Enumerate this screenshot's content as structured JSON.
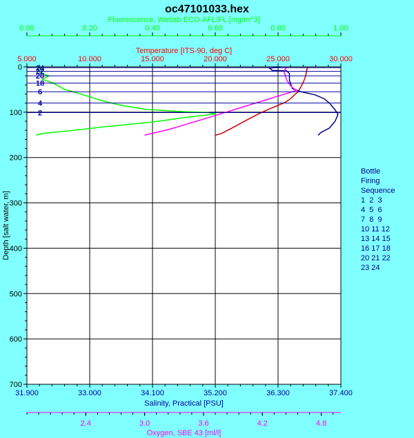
{
  "chart_data": {
    "type": "line",
    "title": "oc47101033.hex",
    "y_axis": {
      "label": "Depth [salt water, m]",
      "ticks": [
        "0",
        "100",
        "200",
        "300",
        "400",
        "500",
        "600",
        "700"
      ],
      "range": [
        0,
        700
      ],
      "inverted": true
    },
    "x_axes": [
      {
        "id": "fluorescence",
        "label": "Fluorescence, Wetlab ECO-AFL/FL [mg/m^3]",
        "position": "top",
        "color": "#00ff00",
        "range": [
          0,
          1
        ],
        "ticks": [
          "0.00",
          "0.20",
          "0.40",
          "0.60",
          "0.80",
          "1.00"
        ]
      },
      {
        "id": "temperature",
        "label": "Temperature [ITS-90, deg C]",
        "position": "top",
        "color": "#ff0000",
        "range": [
          5,
          30
        ],
        "ticks": [
          "5.000",
          "10.000",
          "15.000",
          "20.000",
          "25.000",
          "30.000"
        ]
      },
      {
        "id": "salinity",
        "label": "Salinity, Practical [PSU]",
        "position": "bottom",
        "color": "#0000a0",
        "range": [
          31.9,
          37.4
        ],
        "ticks": [
          "31.900",
          "33.000",
          "34.100",
          "35.200",
          "36.300",
          "37.400"
        ]
      },
      {
        "id": "oxygen",
        "label": "Oxygen, SBE 43 [ml/l]",
        "position": "bottom",
        "color": "#ff00ff",
        "range": [
          1.8,
          5.0
        ],
        "ticks": [
          "2.4",
          "3.0",
          "3.6",
          "4.2",
          "4.8"
        ]
      }
    ],
    "grid": true,
    "series": [
      {
        "axis": "temperature",
        "color": "#cc0000",
        "points": [
          [
            27.4,
            0
          ],
          [
            27.3,
            5
          ],
          [
            27.2,
            20
          ],
          [
            27.0,
            35
          ],
          [
            26.8,
            45
          ],
          [
            26.6,
            55
          ],
          [
            26.3,
            62
          ],
          [
            26.0,
            70
          ],
          [
            25.6,
            78
          ],
          [
            25.0,
            85
          ],
          [
            24.3,
            93
          ],
          [
            23.5,
            103
          ],
          [
            22.8,
            113
          ],
          [
            22.0,
            125
          ],
          [
            21.2,
            137
          ],
          [
            20.5,
            147
          ],
          [
            20.0,
            151
          ]
        ]
      },
      {
        "axis": "salinity",
        "color": "#000080",
        "points": [
          [
            36.35,
            0
          ],
          [
            36.15,
            3
          ],
          [
            36.2,
            8
          ],
          [
            36.45,
            9
          ],
          [
            36.5,
            15
          ],
          [
            36.5,
            30
          ],
          [
            36.55,
            48
          ],
          [
            36.7,
            55
          ],
          [
            36.95,
            62
          ],
          [
            37.1,
            70
          ],
          [
            37.2,
            80
          ],
          [
            37.3,
            95
          ],
          [
            37.35,
            105
          ],
          [
            37.3,
            120
          ],
          [
            37.2,
            135
          ],
          [
            37.05,
            145
          ],
          [
            37.0,
            151
          ]
        ]
      },
      {
        "axis": "oxygen",
        "color": "#ff00ff",
        "points": [
          [
            4.45,
            0
          ],
          [
            4.42,
            10
          ],
          [
            4.45,
            30
          ],
          [
            4.5,
            45
          ],
          [
            4.55,
            52
          ],
          [
            4.4,
            62
          ],
          [
            4.25,
            72
          ],
          [
            4.1,
            82
          ],
          [
            3.95,
            92
          ],
          [
            3.8,
            102
          ],
          [
            3.65,
            112
          ],
          [
            3.45,
            125
          ],
          [
            3.25,
            138
          ],
          [
            3.05,
            148
          ],
          [
            3.0,
            151
          ]
        ]
      },
      {
        "axis": "fluorescence",
        "color": "#00ff00",
        "points": [
          [
            0.03,
            0
          ],
          [
            0.05,
            6
          ],
          [
            0.04,
            12
          ],
          [
            0.07,
            20
          ],
          [
            0.05,
            28
          ],
          [
            0.08,
            35
          ],
          [
            0.1,
            42
          ],
          [
            0.12,
            50
          ],
          [
            0.16,
            58
          ],
          [
            0.2,
            66
          ],
          [
            0.24,
            75
          ],
          [
            0.3,
            85
          ],
          [
            0.38,
            94
          ],
          [
            0.47,
            98
          ],
          [
            0.58,
            101
          ],
          [
            0.6,
            104
          ],
          [
            0.5,
            112
          ],
          [
            0.4,
            122
          ],
          [
            0.25,
            132
          ],
          [
            0.15,
            140
          ],
          [
            0.05,
            147
          ],
          [
            0.03,
            151
          ]
        ]
      }
    ],
    "bottles": [
      {
        "label": "24",
        "depth": 2
      },
      {
        "label": "22",
        "depth": 10
      },
      {
        "label": "20",
        "depth": 20
      },
      {
        "label": "18",
        "depth": 36
      },
      {
        "label": "6",
        "depth": 55
      },
      {
        "label": "4",
        "depth": 80
      },
      {
        "label": "2",
        "depth": 101
      }
    ],
    "legend": {
      "title": [
        "Bottle",
        "Firing",
        "Sequence"
      ],
      "rows": [
        "1  2  3",
        "4  5  6",
        "7  8  9",
        "10 11 12",
        "13 14 15",
        "16 17 18",
        "20 21 22",
        "23 24"
      ]
    }
  }
}
